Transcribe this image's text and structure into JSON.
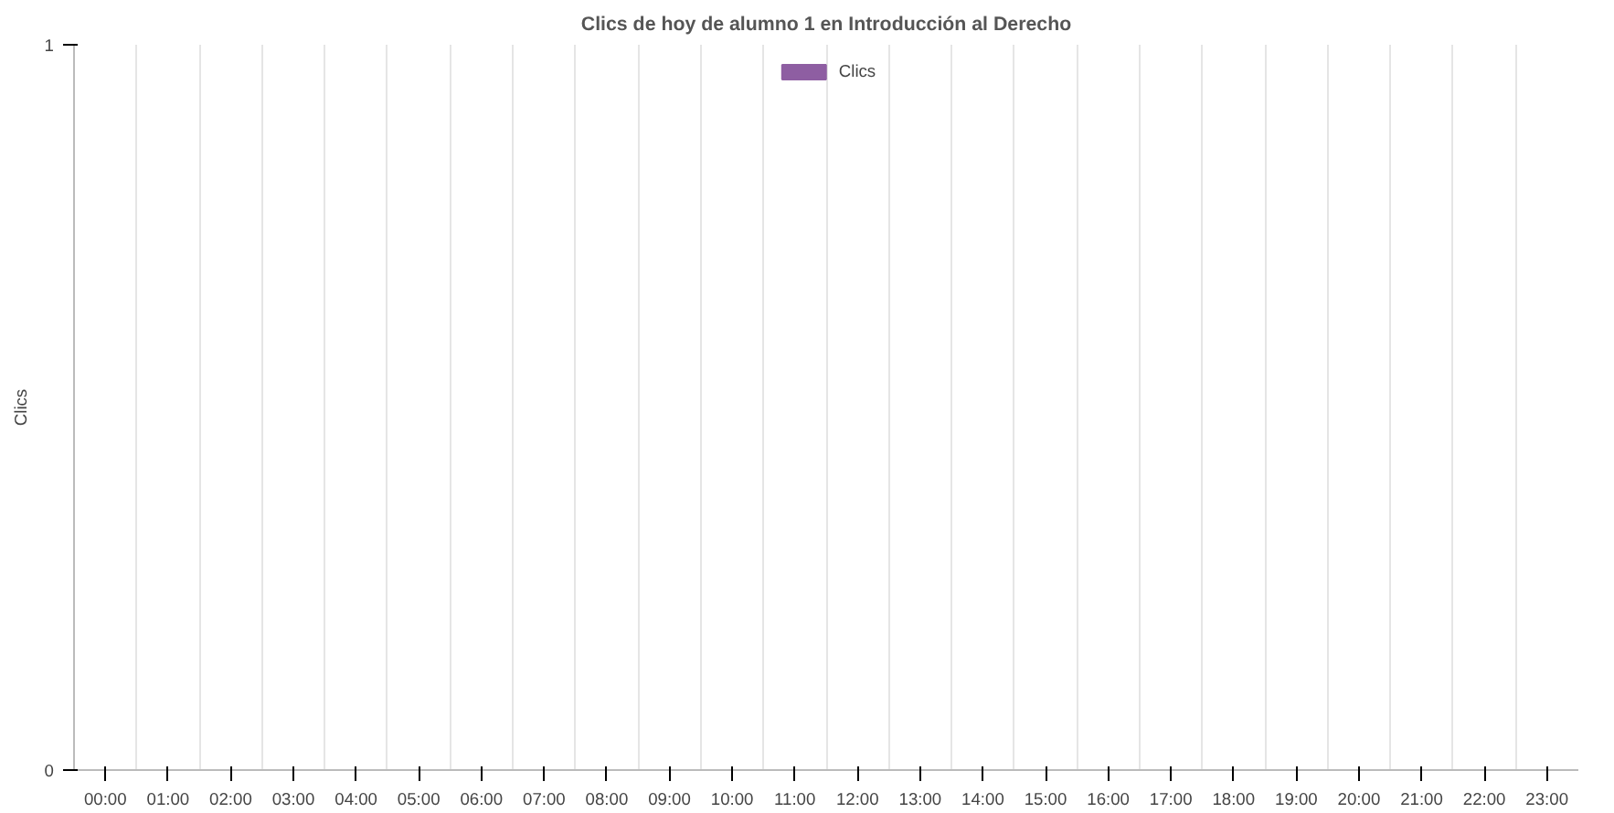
{
  "chart_data": {
    "type": "bar",
    "title": "Clics de hoy de alumno 1 en Introducción al Derecho",
    "ylabel": "Clics",
    "categories": [
      "00:00",
      "01:00",
      "02:00",
      "03:00",
      "04:00",
      "05:00",
      "06:00",
      "07:00",
      "08:00",
      "09:00",
      "10:00",
      "11:00",
      "12:00",
      "13:00",
      "14:00",
      "15:00",
      "16:00",
      "17:00",
      "18:00",
      "19:00",
      "20:00",
      "21:00",
      "22:00",
      "23:00"
    ],
    "series": [
      {
        "name": "Clics",
        "color": "#8e5ea2",
        "values": [
          0,
          0,
          0,
          0,
          0,
          0,
          0,
          0,
          0,
          0,
          0,
          0,
          0,
          0,
          0,
          0,
          0,
          0,
          0,
          0,
          0,
          0,
          0,
          0
        ]
      }
    ],
    "ylim": [
      0,
      1
    ],
    "yticks": [
      0,
      1
    ],
    "grid": true,
    "legend": "top"
  }
}
